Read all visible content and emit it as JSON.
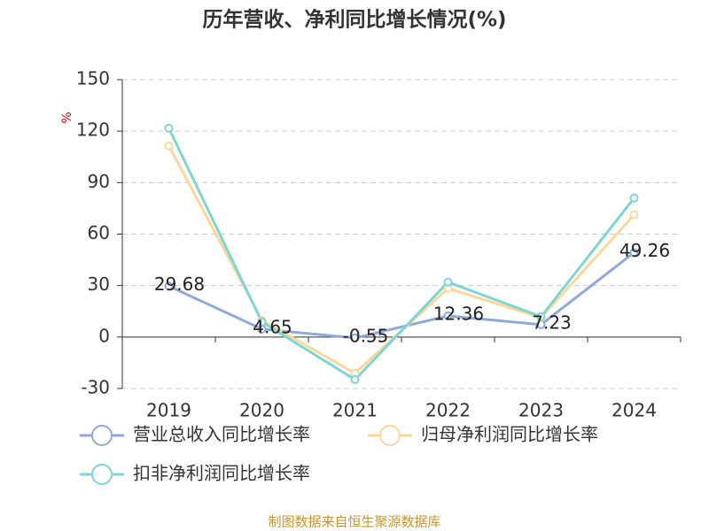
{
  "chart_data": {
    "type": "line",
    "title": "历年营收、净利同比增长情况(%)",
    "y_label": "%",
    "categories": [
      "2019",
      "2020",
      "2021",
      "2022",
      "2023",
      "2024"
    ],
    "series": [
      {
        "name": "营业总收入同比增长率",
        "color": "#8fa9d9",
        "labels": true,
        "values": [
          29.68,
          4.65,
          -0.55,
          12.36,
          7.23,
          49.26
        ]
      },
      {
        "name": "归母净利润同比增长率",
        "color": "#fad89a",
        "labels": false,
        "values": [
          111.4,
          9.8,
          -21.1,
          28.4,
          11.3,
          71.2
        ]
      },
      {
        "name": "扣非净利润同比增长率",
        "color": "#7fd4d4",
        "labels": false,
        "values": [
          121.7,
          8.8,
          -24.8,
          32.0,
          11.9,
          81.0
        ]
      }
    ],
    "ylim": [
      -30,
      150
    ],
    "yticks": [
      -30,
      0,
      30,
      60,
      90,
      120,
      150
    ],
    "grid": true,
    "legend": "bottom",
    "source": "制图数据来自恒生聚源数据库"
  }
}
